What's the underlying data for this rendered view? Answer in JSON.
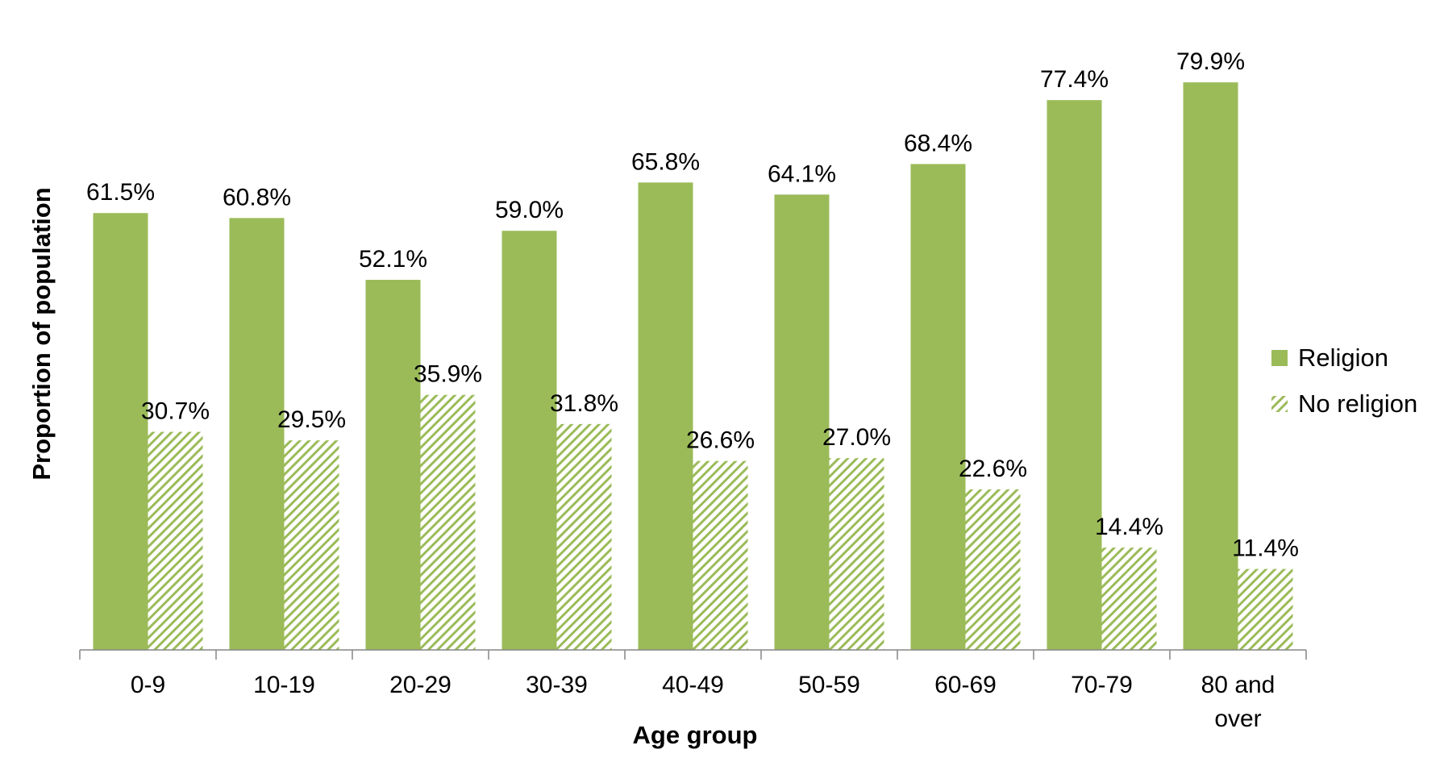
{
  "chart_data": {
    "type": "bar",
    "title": "",
    "xlabel": "Age group",
    "ylabel": "Proportion of population",
    "categories": [
      "0-9",
      "10-19",
      "20-29",
      "30-39",
      "40-49",
      "50-59",
      "60-69",
      "70-79",
      "80 and over"
    ],
    "series": [
      {
        "name": "Religion",
        "values": [
          61.5,
          60.8,
          52.1,
          59.0,
          65.8,
          64.1,
          68.4,
          77.4,
          79.9
        ],
        "labels": [
          "61.5%",
          "60.8%",
          "52.1%",
          "59.0%",
          "65.8%",
          "64.1%",
          "68.4%",
          "77.4%",
          "79.9%"
        ],
        "color": "#9BBB59",
        "fill": "solid"
      },
      {
        "name": "No religion",
        "values": [
          30.7,
          29.5,
          35.9,
          31.8,
          26.6,
          27.0,
          22.6,
          14.4,
          11.4
        ],
        "labels": [
          "30.7%",
          "29.5%",
          "35.9%",
          "31.8%",
          "26.6%",
          "27.0%",
          "22.6%",
          "14.4%",
          "11.4%"
        ],
        "color": "#9BBB59",
        "fill": "hatched"
      }
    ],
    "ylim": [
      0,
      84
    ],
    "y_axis_visible": false,
    "grid": false,
    "legend": "right"
  }
}
